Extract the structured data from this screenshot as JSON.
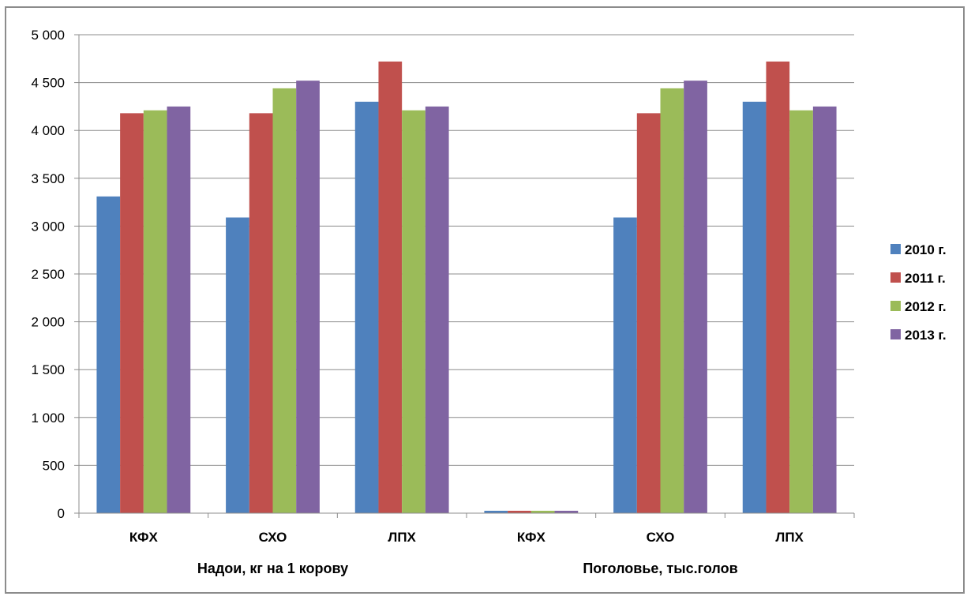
{
  "chart_data": {
    "type": "bar",
    "categories": [
      "КФХ",
      "СХО",
      "ЛПХ",
      "КФХ",
      "СХО",
      "ЛПХ"
    ],
    "group_labels": [
      {
        "label": "Надои, кг на 1 корову",
        "categories": [
          0,
          1,
          2
        ]
      },
      {
        "label": "Поголовье, тыс.голов",
        "categories": [
          3,
          4,
          5
        ]
      }
    ],
    "series": [
      {
        "name": "2010 г.",
        "color": "#4f81bd",
        "values": [
          3310,
          3090,
          4300,
          25,
          3090,
          4300
        ]
      },
      {
        "name": "2011 г.",
        "color": "#c0504d",
        "values": [
          4180,
          4180,
          4720,
          25,
          4180,
          4720
        ]
      },
      {
        "name": "2012 г.",
        "color": "#9bbb59",
        "values": [
          4210,
          4440,
          4210,
          25,
          4440,
          4210
        ]
      },
      {
        "name": "2013 г.",
        "color": "#8064a2",
        "values": [
          4250,
          4520,
          4250,
          25,
          4520,
          4250
        ]
      }
    ],
    "ylim": [
      0,
      5000
    ],
    "yticks": [
      0,
      500,
      1000,
      1500,
      2000,
      2500,
      3000,
      3500,
      4000,
      4500,
      5000
    ],
    "ytick_labels": [
      "0",
      "500",
      "1 000",
      "1 500",
      "2 000",
      "2 500",
      "3 000",
      "3 500",
      "4 000",
      "4 500",
      "5 000"
    ],
    "grid": true,
    "legend_position": "right"
  }
}
